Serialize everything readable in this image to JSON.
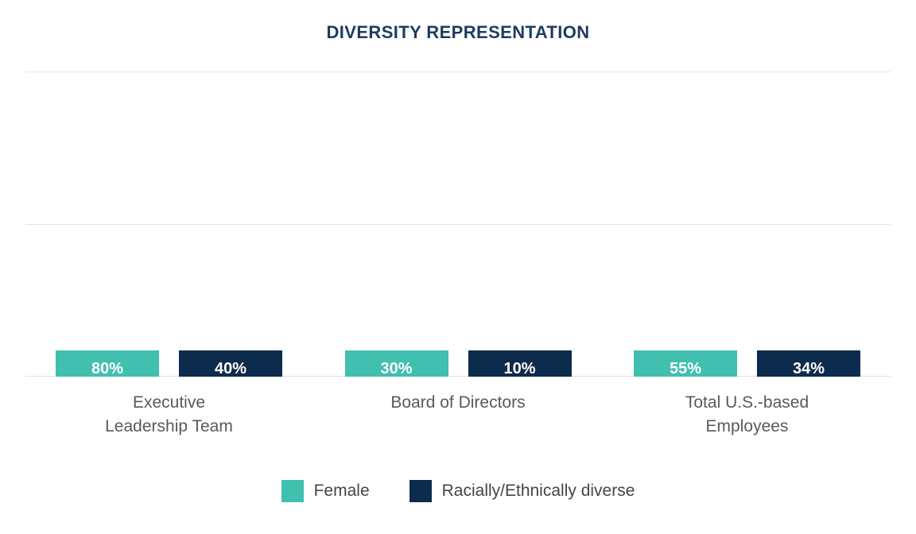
{
  "chart_data": {
    "type": "bar",
    "title": "DIVERSITY REPRESENTATION",
    "categories": [
      "Executive Leadership Team",
      "Board of Directors",
      "Total U.S.-based Employees"
    ],
    "label_lines": [
      [
        "Executive",
        "Leadership Team"
      ],
      [
        "Board of Directors"
      ],
      [
        "Total U.S.-based",
        "Employees"
      ]
    ],
    "series": [
      {
        "name": "Female",
        "color": "#41BFAF",
        "values": [
          80,
          30,
          55
        ]
      },
      {
        "name": "Racially/Ethnically diverse",
        "color": "#0D2B4D",
        "values": [
          40,
          10,
          34
        ]
      }
    ],
    "value_suffix": "%",
    "data_labels": [
      "80%",
      "40%",
      "30%",
      "10%",
      "55%",
      "34%"
    ],
    "xlabel": "",
    "ylabel": "",
    "ylim": [
      0,
      100
    ],
    "gridlines": [
      0,
      50,
      100
    ],
    "grid": true,
    "legend_position": "bottom"
  },
  "colors": {
    "title": "#1D3C5E",
    "grid": "#E4E4E4",
    "category_text": "#595959",
    "legend_text": "#454545",
    "background": "#FFFFFF"
  }
}
